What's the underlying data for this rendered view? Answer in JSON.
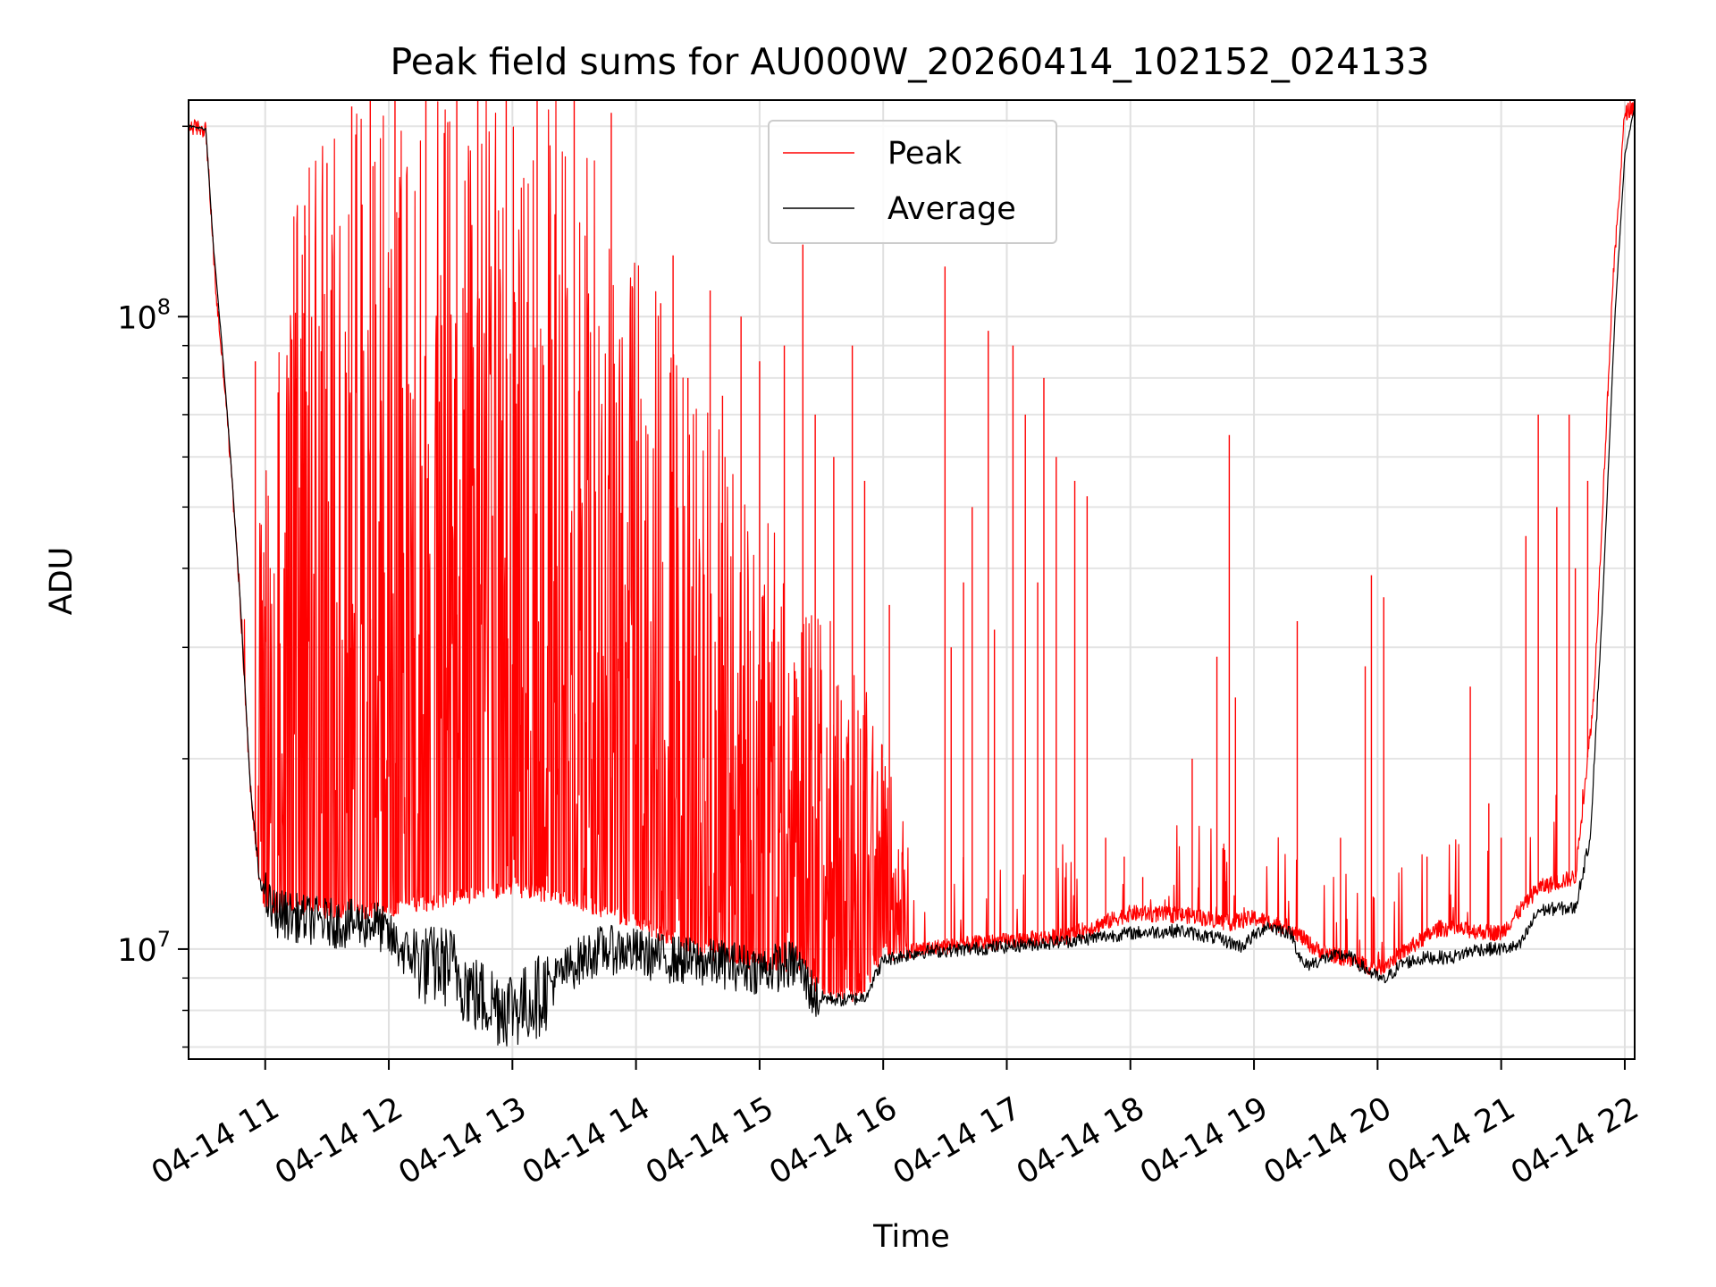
{
  "chart_data": {
    "type": "line",
    "title": "Peak field sums for AU000W_20260414_102152_024133",
    "xlabel": "Time",
    "ylabel": "ADU",
    "xscale": "time",
    "yscale": "log",
    "xlim": [
      10.38,
      22.08
    ],
    "ylim": [
      6700000,
      220000000
    ],
    "grid": true,
    "legend_position": "top-center",
    "x_ticks": [
      {
        "value": 11,
        "label": "04-14 11"
      },
      {
        "value": 12,
        "label": "04-14 12"
      },
      {
        "value": 13,
        "label": "04-14 13"
      },
      {
        "value": 14,
        "label": "04-14 14"
      },
      {
        "value": 15,
        "label": "04-14 15"
      },
      {
        "value": 16,
        "label": "04-14 16"
      },
      {
        "value": 17,
        "label": "04-14 17"
      },
      {
        "value": 18,
        "label": "04-14 18"
      },
      {
        "value": 19,
        "label": "04-14 19"
      },
      {
        "value": 20,
        "label": "04-14 20"
      },
      {
        "value": 21,
        "label": "04-14 21"
      },
      {
        "value": 22,
        "label": "04-14 22"
      }
    ],
    "y_major_ticks": [
      {
        "value": 10000000,
        "base": "10",
        "exp": "7"
      },
      {
        "value": 100000000,
        "base": "10",
        "exp": "8"
      }
    ],
    "y_minor_ticks": [
      7000000,
      8000000,
      9000000,
      20000000,
      30000000,
      40000000,
      50000000,
      60000000,
      70000000,
      80000000,
      90000000,
      200000000
    ],
    "series": [
      {
        "name": "Peak",
        "color": "#ff0000",
        "x_unit": "hours",
        "envelope": [
          [
            10.38,
            200000000
          ],
          [
            10.52,
            198000000
          ],
          [
            10.6,
            110000000
          ],
          [
            10.68,
            75000000
          ],
          [
            10.78,
            40000000
          ],
          [
            10.88,
            18000000
          ],
          [
            10.95,
            13000000
          ],
          [
            11.0,
            11800000
          ],
          [
            11.5,
            11500000
          ],
          [
            12.0,
            11500000
          ],
          [
            12.5,
            12000000
          ],
          [
            13.0,
            12500000
          ],
          [
            13.5,
            12000000
          ],
          [
            14.0,
            11000000
          ],
          [
            14.5,
            10000000
          ],
          [
            15.0,
            9500000
          ],
          [
            15.35,
            9500000
          ],
          [
            15.5,
            8500000
          ],
          [
            15.8,
            8500000
          ],
          [
            16.0,
            9800000
          ],
          [
            16.5,
            10100000
          ],
          [
            17.0,
            10300000
          ],
          [
            17.5,
            10500000
          ],
          [
            18.0,
            11400000
          ],
          [
            18.5,
            11300000
          ],
          [
            18.8,
            11000000
          ],
          [
            19.0,
            11200000
          ],
          [
            19.3,
            10800000
          ],
          [
            19.5,
            10000000
          ],
          [
            20.0,
            9300000
          ],
          [
            20.5,
            10800000
          ],
          [
            21.0,
            10600000
          ],
          [
            21.3,
            12500000
          ],
          [
            21.6,
            13000000
          ],
          [
            21.75,
            25000000
          ],
          [
            21.9,
            110000000
          ],
          [
            22.0,
            210000000
          ],
          [
            22.08,
            215000000
          ]
        ],
        "dense_region": {
          "x_start": 10.95,
          "x_end": 16.2,
          "max_values": [
            [
              10.95,
              60000000
            ],
            [
              11.3,
              180000000
            ],
            [
              11.8,
              220000000
            ],
            [
              12.3,
              220000000
            ],
            [
              13.0,
              220000000
            ],
            [
              13.5,
              220000000
            ],
            [
              14.0,
              130000000
            ],
            [
              14.4,
              90000000
            ],
            [
              14.8,
              60000000
            ],
            [
              15.3,
              40000000
            ],
            [
              15.8,
              30000000
            ],
            [
              16.2,
              15000000
            ]
          ]
        },
        "spikes": [
          [
            10.92,
            85000000
          ],
          [
            11.25,
            80000000
          ],
          [
            11.32,
            150000000
          ],
          [
            11.5,
            175000000
          ],
          [
            11.7,
            215000000
          ],
          [
            11.85,
            220000000
          ],
          [
            12.05,
            220000000
          ],
          [
            12.3,
            220000000
          ],
          [
            12.55,
            220000000
          ],
          [
            12.72,
            220000000
          ],
          [
            12.95,
            220000000
          ],
          [
            13.2,
            220000000
          ],
          [
            13.5,
            220000000
          ],
          [
            13.8,
            210000000
          ],
          [
            14.2,
            105000000
          ],
          [
            14.3,
            125000000
          ],
          [
            14.42,
            80000000
          ],
          [
            14.6,
            110000000
          ],
          [
            14.7,
            75000000
          ],
          [
            14.85,
            100000000
          ],
          [
            15.0,
            85000000
          ],
          [
            15.2,
            90000000
          ],
          [
            15.35,
            130000000
          ],
          [
            15.45,
            70000000
          ],
          [
            15.6,
            60000000
          ],
          [
            15.75,
            90000000
          ],
          [
            15.85,
            55000000
          ],
          [
            16.05,
            35000000
          ],
          [
            16.5,
            120000000
          ],
          [
            16.55,
            30000000
          ],
          [
            16.65,
            38000000
          ],
          [
            16.72,
            50000000
          ],
          [
            16.85,
            95000000
          ],
          [
            16.9,
            32000000
          ],
          [
            17.05,
            90000000
          ],
          [
            17.15,
            70000000
          ],
          [
            17.25,
            38000000
          ],
          [
            17.3,
            80000000
          ],
          [
            17.4,
            60000000
          ],
          [
            17.55,
            55000000
          ],
          [
            17.65,
            52000000
          ],
          [
            17.8,
            15000000
          ],
          [
            17.95,
            14000000
          ],
          [
            18.1,
            13000000
          ],
          [
            18.5,
            20000000
          ],
          [
            18.7,
            29000000
          ],
          [
            18.8,
            65000000
          ],
          [
            18.85,
            25000000
          ],
          [
            19.35,
            33000000
          ],
          [
            19.7,
            15000000
          ],
          [
            19.9,
            28000000
          ],
          [
            19.95,
            39000000
          ],
          [
            20.05,
            36000000
          ],
          [
            20.4,
            14000000
          ],
          [
            20.75,
            26000000
          ],
          [
            20.9,
            17000000
          ],
          [
            21.0,
            15000000
          ],
          [
            21.2,
            45000000
          ],
          [
            21.3,
            70000000
          ],
          [
            21.45,
            50000000
          ],
          [
            21.55,
            70000000
          ],
          [
            21.6,
            40000000
          ],
          [
            21.7,
            55000000
          ]
        ]
      },
      {
        "name": "Average",
        "color": "#000000",
        "x_unit": "hours",
        "points": [
          [
            10.38,
            200000000
          ],
          [
            10.52,
            198000000
          ],
          [
            10.58,
            130000000
          ],
          [
            10.65,
            90000000
          ],
          [
            10.72,
            60000000
          ],
          [
            10.8,
            35000000
          ],
          [
            10.88,
            18000000
          ],
          [
            10.95,
            13000000
          ],
          [
            11.05,
            11500000
          ],
          [
            11.3,
            11200000
          ],
          [
            11.6,
            11000000
          ],
          [
            11.9,
            11000000
          ],
          [
            12.1,
            10000000
          ],
          [
            12.3,
            9500000
          ],
          [
            12.5,
            9500000
          ],
          [
            12.7,
            8500000
          ],
          [
            12.9,
            8200000
          ],
          [
            13.1,
            8200000
          ],
          [
            13.3,
            8800000
          ],
          [
            13.5,
            9500000
          ],
          [
            13.7,
            10000000
          ],
          [
            13.9,
            10000000
          ],
          [
            14.1,
            9800000
          ],
          [
            14.4,
            9600000
          ],
          [
            14.7,
            9500000
          ],
          [
            15.0,
            9300000
          ],
          [
            15.3,
            9500000
          ],
          [
            15.45,
            8400000
          ],
          [
            15.7,
            8300000
          ],
          [
            15.85,
            8400000
          ],
          [
            16.0,
            9600000
          ],
          [
            16.3,
            9900000
          ],
          [
            16.7,
            10000000
          ],
          [
            17.0,
            10100000
          ],
          [
            17.5,
            10300000
          ],
          [
            18.0,
            10600000
          ],
          [
            18.4,
            10700000
          ],
          [
            18.7,
            10400000
          ],
          [
            18.9,
            10100000
          ],
          [
            19.1,
            10900000
          ],
          [
            19.3,
            10600000
          ],
          [
            19.4,
            9400000
          ],
          [
            19.6,
            9700000
          ],
          [
            19.75,
            9800000
          ],
          [
            19.9,
            9300000
          ],
          [
            20.05,
            8900000
          ],
          [
            20.2,
            9500000
          ],
          [
            20.4,
            9700000
          ],
          [
            20.6,
            9700000
          ],
          [
            20.8,
            10000000
          ],
          [
            21.0,
            10000000
          ],
          [
            21.15,
            10100000
          ],
          [
            21.3,
            11500000
          ],
          [
            21.45,
            11600000
          ],
          [
            21.6,
            11600000
          ],
          [
            21.72,
            15000000
          ],
          [
            21.82,
            35000000
          ],
          [
            21.92,
            100000000
          ],
          [
            22.0,
            180000000
          ],
          [
            22.08,
            215000000
          ]
        ]
      }
    ],
    "legend": [
      {
        "label": "Peak",
        "color": "#ff0000"
      },
      {
        "label": "Average",
        "color": "#000000"
      }
    ]
  }
}
